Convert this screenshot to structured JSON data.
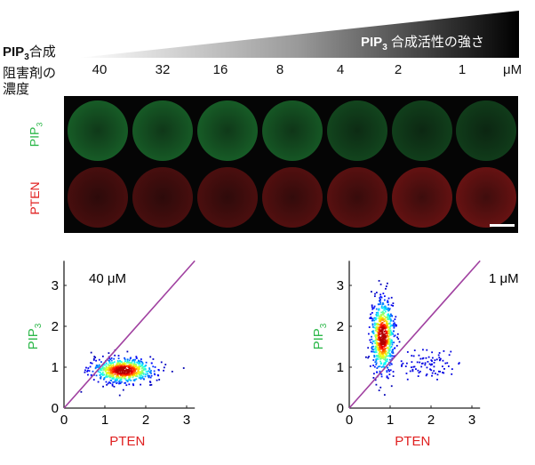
{
  "header": {
    "activity_label_prefix": "PIP",
    "activity_label_sub": "3",
    "activity_label_rest": " 合成活性の強さ",
    "inhibitor_label_line1_prefix": "PIP",
    "inhibitor_label_line1_sub": "3",
    "inhibitor_label_line1_rest": "合成",
    "inhibitor_label_line2": "阻害剤の",
    "inhibitor_label_line3": "濃度",
    "concentrations": [
      "40",
      "32",
      "16",
      "8",
      "4",
      "2",
      "1"
    ],
    "unit": "μM"
  },
  "micrographs": {
    "row_labels": {
      "pip3_prefix": "PIP",
      "pip3_sub": "3",
      "pten": "PTEN"
    },
    "colors": {
      "pip3": "#2db84a",
      "pten": "#e02020"
    },
    "pip3_ring_intensity": [
      0.35,
      0.4,
      0.35,
      0.45,
      0.75,
      0.85,
      0.9
    ],
    "pten_ring_intensity": [
      0.85,
      0.85,
      0.8,
      0.7,
      0.6,
      0.45,
      0.4
    ]
  },
  "chart_data": [
    {
      "type": "scatter",
      "title": "40 μM",
      "xlabel": "PTEN",
      "ylabel_prefix": "PIP",
      "ylabel_sub": "3",
      "xlim": [
        0,
        3.2
      ],
      "ylim": [
        0,
        3.6
      ],
      "xticks": [
        "0",
        "1",
        "2",
        "3"
      ],
      "yticks": [
        "0",
        "1",
        "2",
        "3"
      ],
      "reference_line": {
        "slope": 1,
        "color": "#a040a0"
      },
      "colormap": "jet (density)",
      "clusters": [
        {
          "x_center": 1.45,
          "y_center": 0.92,
          "x_spread": 0.38,
          "y_spread": 0.15,
          "n": 700
        }
      ]
    },
    {
      "type": "scatter",
      "title": "1 μM",
      "xlabel": "PTEN",
      "ylabel_prefix": "PIP",
      "ylabel_sub": "3",
      "xlim": [
        0,
        3.2
      ],
      "ylim": [
        0,
        3.6
      ],
      "xticks": [
        "0",
        "1",
        "2",
        "3"
      ],
      "yticks": [
        "0",
        "1",
        "2",
        "3"
      ],
      "reference_line": {
        "slope": 1,
        "color": "#a040a0"
      },
      "colormap": "jet (density)",
      "clusters": [
        {
          "x_center": 0.82,
          "y_center": 1.75,
          "x_spread": 0.14,
          "y_spread": 0.45,
          "n": 700
        },
        {
          "x_center": 1.9,
          "y_center": 1.05,
          "x_spread": 0.5,
          "y_spread": 0.17,
          "n": 90
        }
      ]
    }
  ]
}
